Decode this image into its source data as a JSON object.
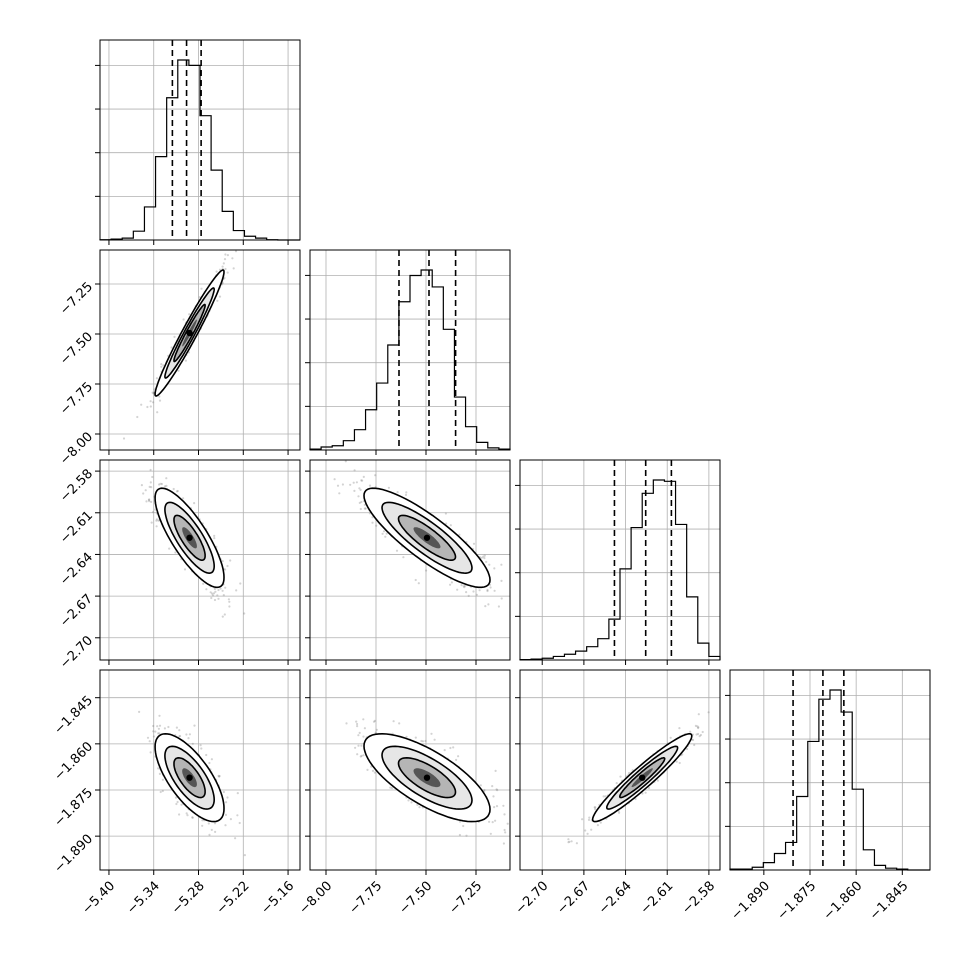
{
  "chart_data": {
    "type": "corner",
    "grid": true,
    "parameters": [
      {
        "ticks": [
          -5.4,
          -5.34,
          -5.28,
          -5.22,
          -5.16
        ],
        "tick_labels": [
          "−5.40",
          "−5.34",
          "−5.28",
          "−5.22",
          "−5.16"
        ],
        "range": [
          -5.412,
          -5.144
        ]
      },
      {
        "ticks": [
          -8.0,
          -7.75,
          -7.5,
          -7.25
        ],
        "tick_labels": [
          "−8.00",
          "−7.75",
          "−7.50",
          "−7.25"
        ],
        "range": [
          -8.08,
          -7.08
        ]
      },
      {
        "ticks": [
          -2.7,
          -2.67,
          -2.64,
          -2.61,
          -2.58
        ],
        "tick_labels": [
          "−2.70",
          "−2.67",
          "−2.64",
          "−2.61",
          "−2.58"
        ],
        "range": [
          -2.716,
          -2.572
        ]
      },
      {
        "ticks": [
          -1.89,
          -1.875,
          -1.86,
          -1.845
        ],
        "tick_labels": [
          "−1.890",
          "−1.875",
          "−1.860",
          "−1.845"
        ],
        "range": [
          -1.901,
          -1.836
        ]
      }
    ],
    "marginals": [
      {
        "values": [
          1,
          3,
          6,
          28,
          105,
          265,
          452,
          572,
          555,
          395,
          222,
          91,
          30,
          12,
          6,
          1,
          0,
          0
        ],
        "quantiles": [
          -5.315,
          -5.296,
          -5.2765
        ]
      },
      {
        "values": [
          2,
          7,
          10,
          22,
          48,
          95,
          158,
          248,
          350,
          412,
          425,
          385,
          285,
          125,
          55,
          18,
          5,
          2
        ],
        "quantiles": [
          -7.635,
          -7.485,
          -7.352
        ]
      },
      {
        "values": [
          1,
          2,
          4,
          8,
          13,
          20,
          30,
          48,
          92,
          205,
          298,
          375,
          405,
          402,
          305,
          142,
          38,
          8
        ],
        "quantiles": [
          -2.648,
          -2.6255,
          -2.607
        ]
      },
      {
        "values": [
          1,
          1,
          3,
          8,
          18,
          30,
          80,
          140,
          186,
          196,
          172,
          88,
          22,
          5,
          2,
          1,
          0,
          0
        ],
        "quantiles": [
          -1.8805,
          -1.8708,
          -1.864
        ]
      }
    ],
    "pairs": [
      {
        "x": 0,
        "y": 1,
        "mean": [
          -5.292,
          -7.495
        ],
        "sd": [
          0.022,
          0.15
        ],
        "corr": 0.97
      },
      {
        "x": 0,
        "y": 2,
        "mean": [
          -5.292,
          -2.628
        ],
        "sd": [
          0.022,
          0.017
        ],
        "corr": -0.8
      },
      {
        "x": 1,
        "y": 2,
        "mean": [
          -7.495,
          -2.628
        ],
        "sd": [
          0.15,
          0.017
        ],
        "corr": -0.85
      },
      {
        "x": 0,
        "y": 3,
        "mean": [
          -5.292,
          -1.871
        ],
        "sd": [
          0.022,
          0.0068
        ],
        "corr": -0.7
      },
      {
        "x": 1,
        "y": 3,
        "mean": [
          -7.495,
          -1.871
        ],
        "sd": [
          0.15,
          0.0068
        ],
        "corr": -0.72
      },
      {
        "x": 2,
        "y": 3,
        "mean": [
          -2.628,
          -1.871
        ],
        "sd": [
          0.017,
          0.0068
        ],
        "corr": 0.95
      }
    ]
  }
}
